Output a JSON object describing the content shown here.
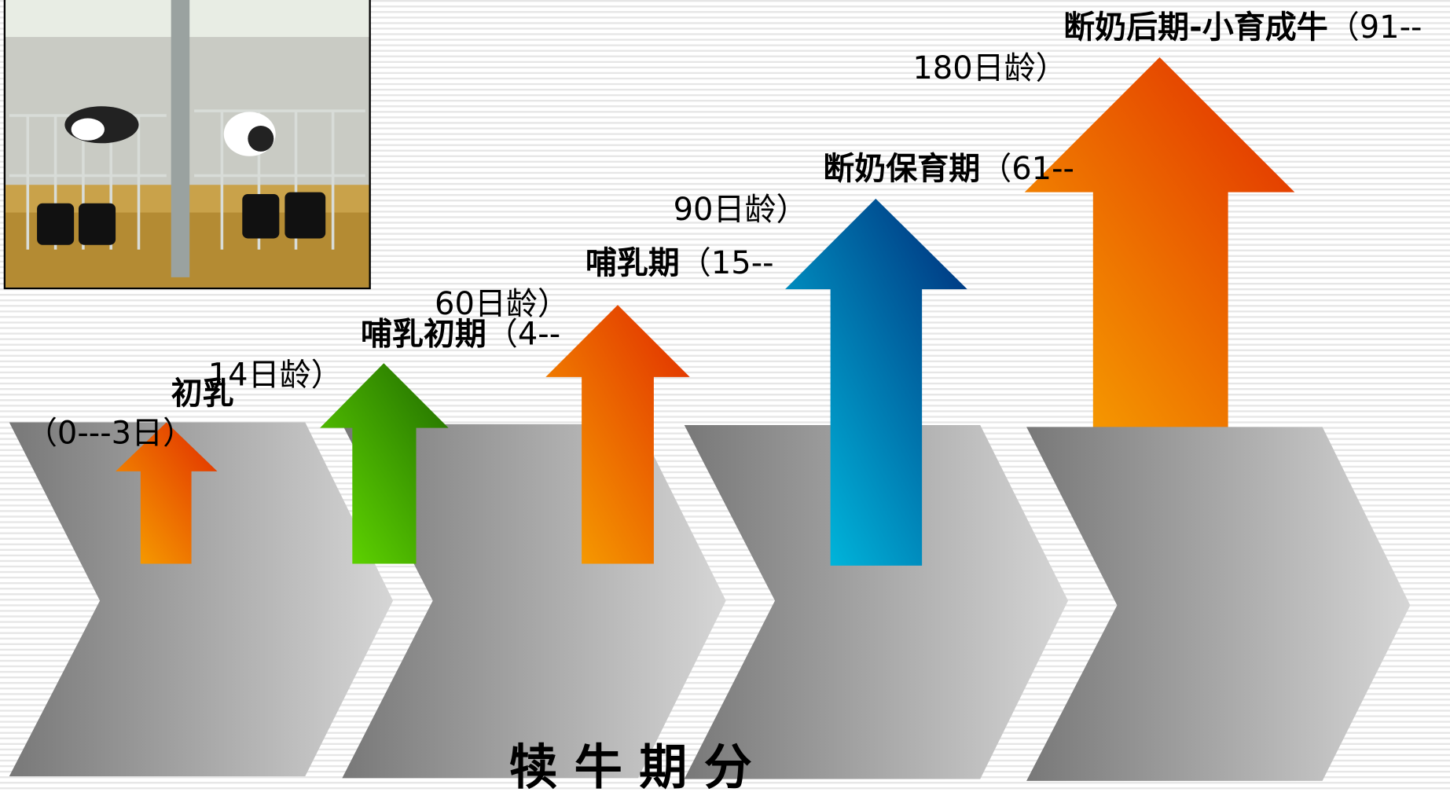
{
  "title": "犊 牛 期 分",
  "stages": [
    {
      "name": "初乳",
      "range": [
        "（0---3日）"
      ]
    },
    {
      "name": "哺乳初期",
      "range": [
        "（4--",
        "14日龄）"
      ]
    },
    {
      "name": "哺乳期",
      "range": [
        "（15--",
        "60日龄）"
      ]
    },
    {
      "name": "断奶保育期",
      "range": [
        "（61--",
        "90日龄）"
      ]
    },
    {
      "name": "断奶后期-小育成牛",
      "range": [
        "（91--",
        "180日龄）"
      ]
    }
  ]
}
